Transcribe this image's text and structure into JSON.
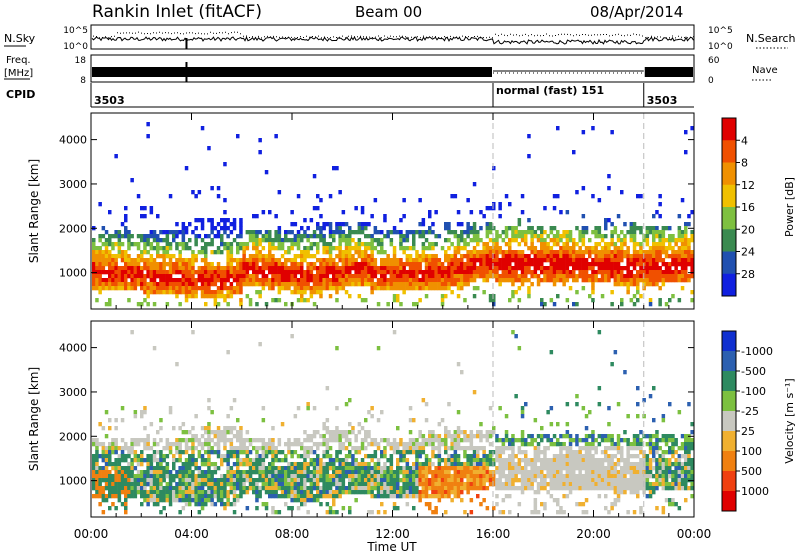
{
  "header": {
    "station": "Rankin Inlet (fitACF)",
    "beam": "Beam 00",
    "date": "08/Apr/2014"
  },
  "top_panels": {
    "nsky_label": "N.Sky",
    "nsky_tick_top": "10^5",
    "nsky_tick_bottom": "10^0",
    "nsearch_label": "N.Search",
    "nsearch_tick_top": "10^5",
    "nsearch_tick_bottom": "10^0",
    "freq_label": "Freq.",
    "freq_unit": "[MHz]",
    "freq_tick_top": "18",
    "freq_tick_bottom": "8",
    "nave_label": "Nave",
    "nave_tick_top": "60",
    "nave_tick_bottom": "0",
    "cpid_label": "CPID",
    "cpid_segments": [
      {
        "label": "3503",
        "start": 0,
        "end": 16
      },
      {
        "label": "normal (fast) 151",
        "start": 16,
        "end": 22
      },
      {
        "label": "3503",
        "start": 22,
        "end": 24
      }
    ]
  },
  "chart_data": [
    {
      "type": "heatmap",
      "name": "power",
      "ylabel": "Slant Range [km]",
      "ylim": [
        180,
        4600
      ],
      "yticks": [
        1000,
        2000,
        3000,
        4000
      ],
      "xlim": [
        0,
        24
      ],
      "colorbar": {
        "label": "Power [dB]",
        "ticks": [
          "4",
          "8",
          "12",
          "16",
          "20",
          "24",
          "28"
        ],
        "colors": [
          "#1020e0",
          "#2050b0",
          "#3a8a50",
          "#7ec040",
          "#f0c000",
          "#f09000",
          "#f05000",
          "#e00000"
        ]
      }
    },
    {
      "type": "heatmap",
      "name": "velocity",
      "ylabel": "Slant Range [km]",
      "ylim": [
        180,
        4600
      ],
      "yticks": [
        1000,
        2000,
        3000,
        4000
      ],
      "xlim": [
        0,
        24
      ],
      "xlabel": "Time UT",
      "xticks": [
        "00:00",
        "04:00",
        "08:00",
        "12:00",
        "16:00",
        "20:00",
        "00:00"
      ],
      "colorbar": {
        "label": "Velocity [m s⁻¹]",
        "ticks": [
          "1000",
          "500",
          "100",
          "25",
          "-25",
          "-100",
          "-500",
          "-1000"
        ],
        "colors": [
          "#1030d0",
          "#2c60b0",
          "#2e8a60",
          "#7cc040",
          "#c8c8c0",
          "#f0b030",
          "#f08010",
          "#f04010",
          "#e00000"
        ]
      }
    }
  ]
}
